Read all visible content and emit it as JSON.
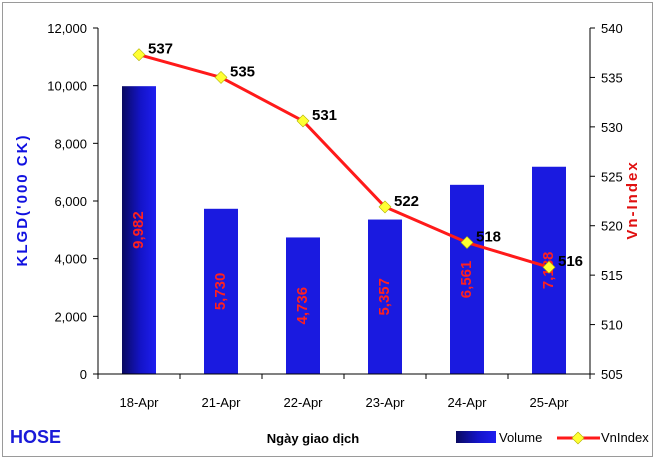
{
  "corner_label": "HOSE",
  "chart_data": {
    "type": "bar",
    "categories": [
      "18-Apr",
      "21-Apr",
      "22-Apr",
      "23-Apr",
      "24-Apr",
      "25-Apr"
    ],
    "series": [
      {
        "name": "Volume",
        "type": "bar",
        "axis": "left",
        "values": [
          9982,
          5730,
          4736,
          5357,
          6561,
          7188
        ],
        "labels": [
          "9,982",
          "5,730",
          "4,736",
          "5,357",
          "6,561",
          "7,188"
        ],
        "color": "#1a1ae0"
      },
      {
        "name": "VnIndex",
        "type": "line",
        "axis": "right",
        "values": [
          537.3,
          535.0,
          530.6,
          521.9,
          518.3,
          515.8
        ],
        "labels": [
          "537",
          "535",
          "531",
          "522",
          "518",
          "516"
        ],
        "color": "#ff1a1a",
        "marker_color": "#ffff33"
      }
    ],
    "xlabel": "Ngày giao dịch",
    "ylabel_left": "KLGD('000 CK)",
    "ylabel_right": "Vn-Index",
    "ylim_left": [
      0,
      12000
    ],
    "yticks_left": [
      "0",
      "2,000",
      "4,000",
      "6,000",
      "8,000",
      "10,000",
      "12,000"
    ],
    "ylim_right": [
      505,
      540
    ],
    "yticks_right": [
      "505",
      "510",
      "515",
      "520",
      "525",
      "530",
      "535",
      "540"
    ],
    "grid": false,
    "legend": {
      "position": "bottom-right",
      "entries": [
        "Volume",
        "VnIndex"
      ]
    }
  }
}
